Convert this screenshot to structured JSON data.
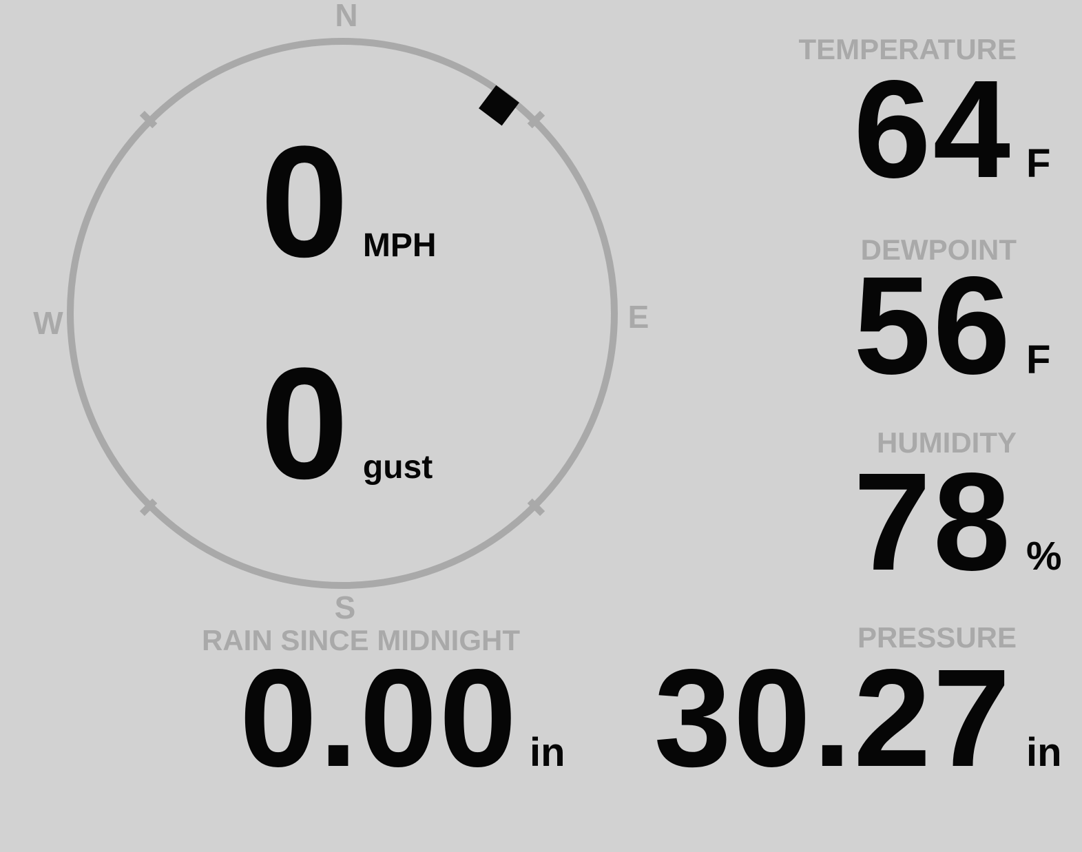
{
  "colors": {
    "background": "#d2d2d2",
    "muted_gray": "#a9a9a9",
    "ink": "#060606"
  },
  "wind": {
    "compass": {
      "north": "N",
      "east": "E",
      "south": "S",
      "west": "W"
    },
    "direction_deg": 37,
    "speed": {
      "value": "0",
      "unit": "MPH"
    },
    "gust": {
      "value": "0",
      "unit": "gust"
    }
  },
  "metrics": {
    "temperature": {
      "label": "TEMPERATURE",
      "value": "64",
      "unit": "F"
    },
    "dewpoint": {
      "label": "DEWPOINT",
      "value": "56",
      "unit": "F"
    },
    "humidity": {
      "label": "HUMIDITY",
      "value": "78",
      "unit": "%"
    },
    "rain": {
      "label": "RAIN SINCE MIDNIGHT",
      "value": "0.00",
      "unit": "in"
    },
    "pressure": {
      "label": "PRESSURE",
      "value": "30.27",
      "unit": "in"
    }
  }
}
